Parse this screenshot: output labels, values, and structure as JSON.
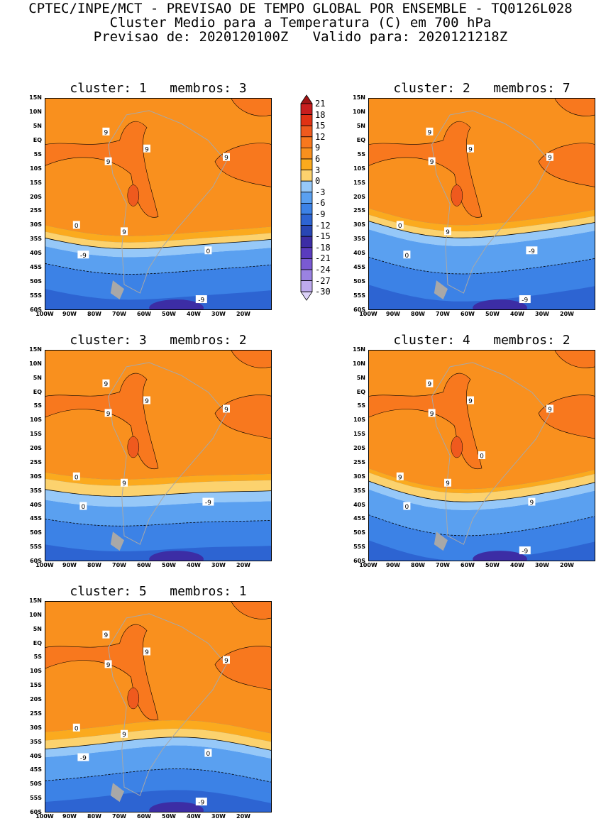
{
  "header": {
    "line1": "CPTEC/INPE/MCT - PREVISAO DE TEMPO GLOBAL POR ENSEMBLE - TQ0126L028",
    "line2": "Cluster Medio para a Temperatura (C) em 700 hPa",
    "line3": "Previsao de: 2020120100Z   Valido para: 2020121218Z"
  },
  "axes": {
    "lat_labels": [
      "15N",
      "10N",
      "5N",
      "EQ",
      "5S",
      "10S",
      "15S",
      "20S",
      "25S",
      "30S",
      "35S",
      "40S",
      "45S",
      "50S",
      "55S",
      "60S"
    ],
    "lon_labels": [
      "100W",
      "90W",
      "80W",
      "70W",
      "60W",
      "50W",
      "40W",
      "30W",
      "20W"
    ]
  },
  "colorbar": {
    "labels": [
      "21",
      "18",
      "15",
      "12",
      "9",
      "6",
      "3",
      "0",
      "-3",
      "-6",
      "-9",
      "-12",
      "-15",
      "-18",
      "-21",
      "-24",
      "-27",
      "-30"
    ],
    "colors": [
      "#a01414",
      "#c81e1e",
      "#e13214",
      "#ef5a1e",
      "#f8781e",
      "#f9901e",
      "#fbaa1e",
      "#fcd26e",
      "#96c8f8",
      "#5aa0f0",
      "#3c82e6",
      "#2d64d2",
      "#2846b4",
      "#3c2da5",
      "#5a3cbe",
      "#7a5ad2",
      "#9a82e1",
      "#beaaee",
      "#dcd2f8"
    ]
  },
  "panels": [
    {
      "title": "cluster: 1   membros: 3",
      "contour_labels": [
        "9",
        "9",
        "9",
        "9",
        "9",
        "0",
        "-9",
        "0",
        "-9"
      ]
    },
    {
      "title": "cluster: 2   membros: 7",
      "contour_labels": [
        "9",
        "9",
        "9",
        "9",
        "9",
        "0",
        "0",
        "-9",
        "-9"
      ]
    },
    {
      "title": "cluster: 3   membros: 2",
      "contour_labels": [
        "9",
        "9",
        "9",
        "9",
        "9",
        "0",
        "0",
        "-9"
      ]
    },
    {
      "title": "cluster: 4   membros: 2",
      "contour_labels": [
        "9",
        "9",
        "9",
        "9",
        "9",
        "9",
        "0",
        "9",
        "-9",
        "0"
      ]
    },
    {
      "title": "cluster: 5   membros: 1",
      "contour_labels": [
        "9",
        "9",
        "9",
        "9",
        "9",
        "0",
        "-9",
        "0",
        "-9"
      ]
    }
  ]
}
